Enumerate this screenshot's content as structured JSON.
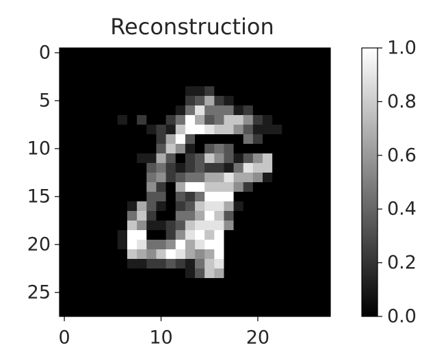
{
  "chart_data": {
    "type": "heatmap",
    "title": "Reconstruction",
    "xlabel": "",
    "ylabel": "",
    "colormap": "gray",
    "image_size": [
      28,
      28
    ],
    "x_ticks": [
      0,
      10,
      20
    ],
    "y_ticks": [
      0,
      5,
      10,
      15,
      20,
      25
    ],
    "colorbar": {
      "range": [
        0.0,
        1.0
      ],
      "ticks": [
        "0.0",
        "0.2",
        "0.4",
        "0.6",
        "0.8",
        "1.0"
      ]
    },
    "rows": [
      "0000000000000000000000000000",
      "0000000000000000000000000000",
      "0000000000000000000000000000",
      "0000000000000000000000000000",
      "0000000000000112000000000000",
      "0000000000000236210000000000",
      "0000000000001484441200000000",
      "0000001020024963477521000000",
      "0000000001217998775311100000",
      "0000000000269300000420000000",
      "0000000000375103430000000000",
      "0000000011630237531357000000",
      "0000000003421232214877000000",
      "0000000004523446686651000000",
      "0000000005206997775200000000",
      "0000000003303249990000000000",
      "0000000163102378861000000000",
      "0000000472004469730000000000",
      "0000000751123788850000000000",
      "0000001990025897900000000000",
      "0000001984459689900000000000",
      "0000000765798656900000000000",
      "0000000112232147800000000000",
      "0000000000000137600000000000",
      "0000000000000000000000000000",
      "0000000000000000000000000000",
      "0000000000000000000000000000",
      "0000000000000000000000000000"
    ]
  }
}
